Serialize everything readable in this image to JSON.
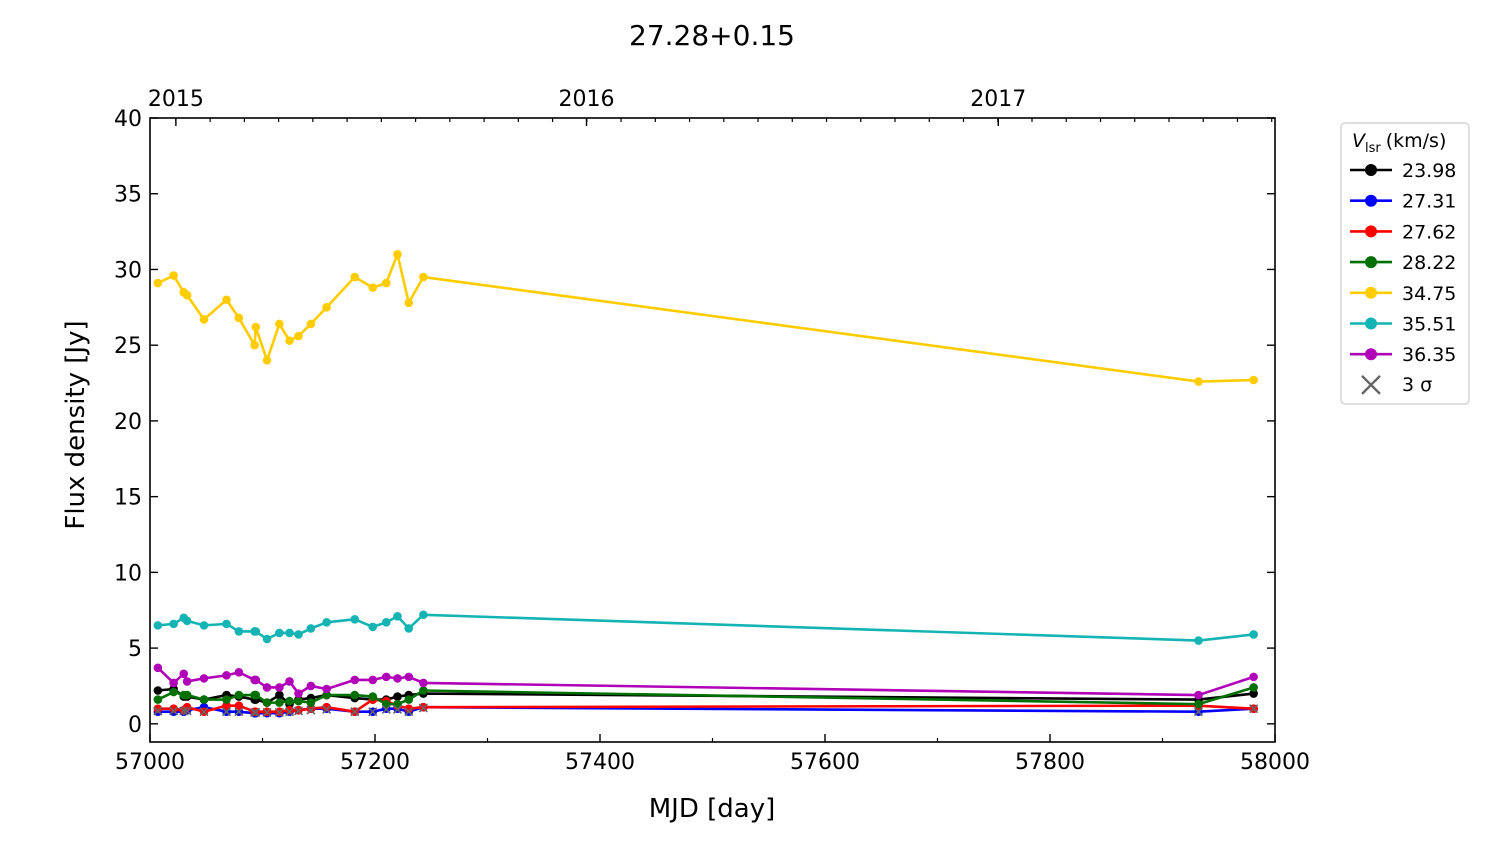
{
  "chart_data": {
    "type": "line",
    "title": "27.28+0.15",
    "xlabel": "MJD [day]",
    "ylabel": "Flux density [Jy]",
    "xlim": [
      57000,
      58000
    ],
    "ylim": [
      -1.2,
      40
    ],
    "xticks": [
      57000,
      57200,
      57400,
      57600,
      57800,
      58000
    ],
    "yticks": [
      0,
      5,
      10,
      15,
      20,
      25,
      30,
      35,
      40
    ],
    "top_axis": {
      "labels": [
        "2015",
        "2016",
        "2017"
      ],
      "mjd": [
        57023,
        57388,
        57754
      ]
    },
    "legend": {
      "title_main": "V",
      "title_sub": "lsr",
      "title_unit": "(km/s)",
      "placement": "outside-right",
      "sigma_label": "3 σ"
    },
    "x": [
      57007,
      57021,
      57030,
      57033,
      57048,
      57068,
      57079,
      57093,
      57094,
      57104,
      57115,
      57124,
      57132,
      57143,
      57157,
      57182,
      57198,
      57210,
      57220,
      57230,
      57243,
      57932,
      57981
    ],
    "series": [
      {
        "name": "23.98",
        "color": "#000000",
        "values": [
          2.2,
          2.3,
          1.8,
          1.8,
          1.6,
          1.9,
          1.8,
          1.6,
          1.6,
          1.4,
          1.9,
          1.3,
          1.6,
          1.7,
          1.9,
          1.7,
          1.6,
          1.6,
          1.8,
          1.9,
          2.0,
          1.6,
          2.0
        ]
      },
      {
        "name": "27.31",
        "color": "#0000ff",
        "values": [
          0.8,
          0.8,
          0.8,
          0.9,
          1.1,
          0.8,
          0.8,
          0.7,
          0.7,
          0.7,
          0.7,
          0.8,
          0.9,
          1.0,
          1.0,
          0.8,
          0.8,
          1.0,
          1.0,
          0.8,
          1.1,
          0.8,
          1.0
        ]
      },
      {
        "name": "27.62",
        "color": "#ff0000",
        "values": [
          1.0,
          1.0,
          0.9,
          1.1,
          0.8,
          1.2,
          1.2,
          0.8,
          0.8,
          0.8,
          0.8,
          0.9,
          0.9,
          1.0,
          1.1,
          0.8,
          1.6,
          1.5,
          1.2,
          1.0,
          1.1,
          1.2,
          1.0
        ]
      },
      {
        "name": "28.22",
        "color": "#007000",
        "values": [
          1.6,
          2.1,
          1.9,
          1.9,
          1.6,
          1.6,
          1.9,
          1.9,
          1.9,
          1.4,
          1.4,
          1.5,
          1.5,
          1.4,
          1.9,
          1.9,
          1.8,
          1.3,
          1.3,
          1.6,
          2.2,
          1.3,
          2.4
        ]
      },
      {
        "name": "34.75",
        "color": "#ffcc00",
        "values": [
          29.1,
          29.6,
          28.5,
          28.3,
          26.7,
          28.0,
          26.8,
          25.0,
          26.2,
          24.0,
          26.4,
          25.3,
          25.6,
          26.4,
          27.5,
          29.5,
          28.8,
          29.1,
          31.0,
          27.8,
          29.5,
          22.6,
          22.7
        ]
      },
      {
        "name": "35.51",
        "color": "#14b4b4",
        "values": [
          6.5,
          6.6,
          7.0,
          6.8,
          6.5,
          6.6,
          6.1,
          6.1,
          6.1,
          5.6,
          6.0,
          6.0,
          5.9,
          6.3,
          6.7,
          6.9,
          6.4,
          6.7,
          7.1,
          6.3,
          7.2,
          5.5,
          5.9
        ]
      },
      {
        "name": "36.35",
        "color": "#b000b8",
        "values": [
          3.7,
          2.7,
          3.3,
          2.8,
          3.0,
          3.2,
          3.4,
          2.9,
          2.9,
          2.4,
          2.4,
          2.8,
          2.0,
          2.5,
          2.3,
          2.9,
          2.9,
          3.1,
          3.0,
          3.1,
          2.7,
          1.9,
          3.1
        ]
      }
    ],
    "sigma3": {
      "color": "#666666",
      "values": [
        0.85,
        0.85,
        0.85,
        0.85,
        0.8,
        0.8,
        0.8,
        0.75,
        0.75,
        0.75,
        0.75,
        0.8,
        0.85,
        0.9,
        0.95,
        0.8,
        0.8,
        0.95,
        0.95,
        0.8,
        1.05,
        0.8,
        1.0
      ]
    }
  }
}
